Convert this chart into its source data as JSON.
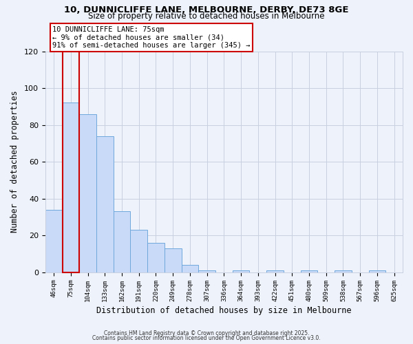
{
  "title1": "10, DUNNICLIFFE LANE, MELBOURNE, DERBY, DE73 8GE",
  "title2": "Size of property relative to detached houses in Melbourne",
  "xlabel": "Distribution of detached houses by size in Melbourne",
  "ylabel": "Number of detached properties",
  "categories": [
    "46sqm",
    "75sqm",
    "104sqm",
    "133sqm",
    "162sqm",
    "191sqm",
    "220sqm",
    "249sqm",
    "278sqm",
    "307sqm",
    "336sqm",
    "364sqm",
    "393sqm",
    "422sqm",
    "451sqm",
    "480sqm",
    "509sqm",
    "538sqm",
    "567sqm",
    "596sqm",
    "625sqm"
  ],
  "values": [
    34,
    92,
    86,
    74,
    33,
    23,
    16,
    13,
    4,
    1,
    0,
    1,
    0,
    1,
    0,
    1,
    0,
    1,
    0,
    1,
    0
  ],
  "highlight_index": 1,
  "bar_color": "#c9daf8",
  "bar_edge_color": "#6fa8dc",
  "highlight_rect_color": "#cc0000",
  "annotation_line1": "10 DUNNICLIFFE LANE: 75sqm",
  "annotation_line2": "← 9% of detached houses are smaller (34)",
  "annotation_line3": "91% of semi-detached houses are larger (345) →",
  "ylim": [
    0,
    120
  ],
  "yticks": [
    0,
    20,
    40,
    60,
    80,
    100,
    120
  ],
  "grid_color": "#c8d0e0",
  "background_color": "#eef2fa",
  "title_fontsize": 9.5,
  "subtitle_fontsize": 8.5,
  "footnote1": "Contains HM Land Registry data © Crown copyright and database right 2025.",
  "footnote2": "Contains public sector information licensed under the Open Government Licence v3.0."
}
